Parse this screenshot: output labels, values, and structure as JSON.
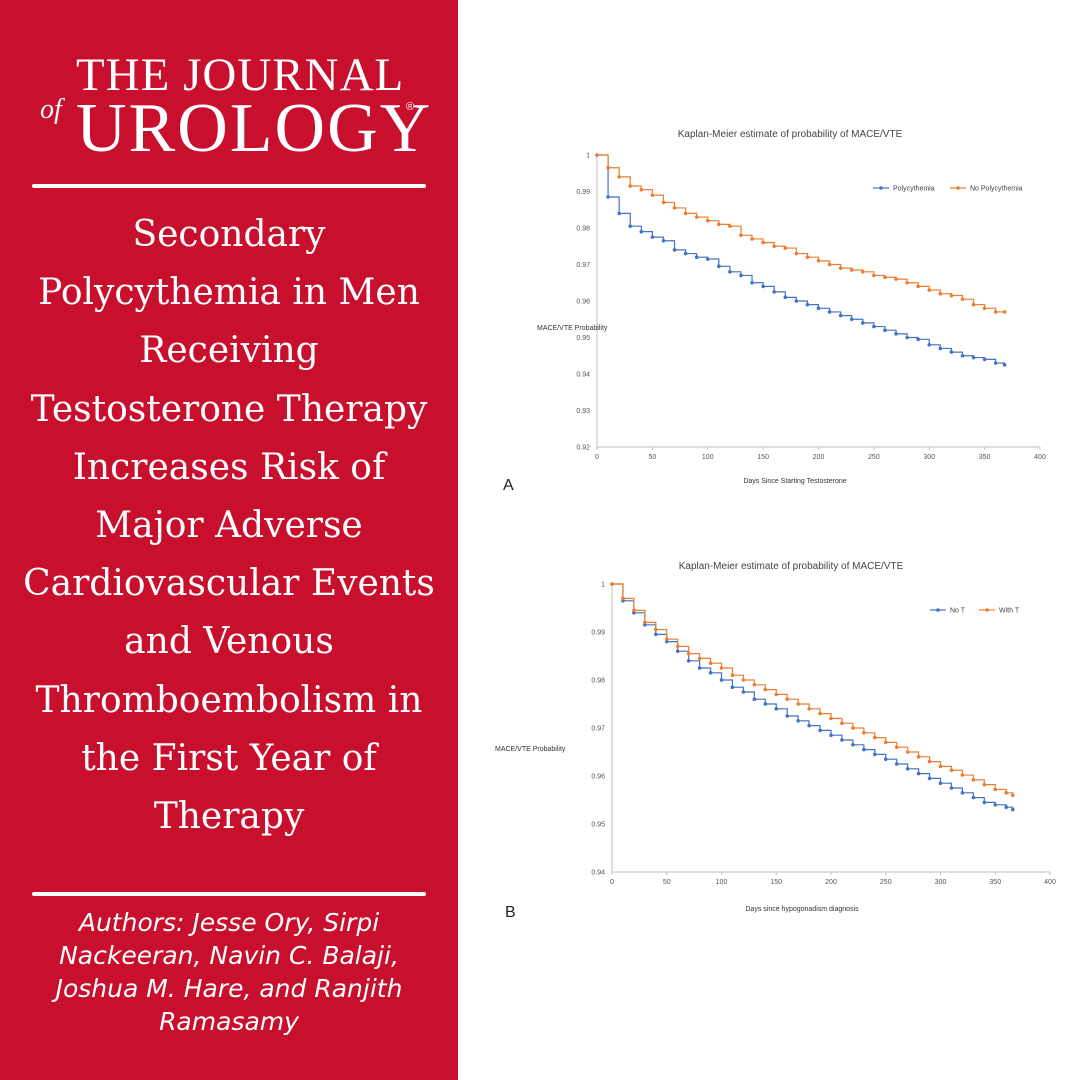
{
  "logo": {
    "line1": "THE JOURNAL",
    "of": "of",
    "line2": "UROLOGY",
    "reg": "®"
  },
  "title": "Secondary Polycythemia in Men Receiving Testosterone Therapy Increases Risk of Major Adverse Cardiovascular Events and Venous Thromboembolism in the First Year of Therapy",
  "authors": "Authors: Jesse Ory, Sirpi Nackeeran, Navin C. Balaji, Joshua M. Hare, and Ranjith Ramasamy",
  "colors": {
    "brand_red": "#c8102e",
    "series_blue": "#4472c4",
    "series_orange": "#ed7d31"
  },
  "chart_data": [
    {
      "type": "line",
      "panel_label": "A",
      "title": "Kaplan-Meier estimate of probability of MACE/VTE",
      "xlabel": "Days Since Starting Testosterone",
      "ylabel": "MACE/VTE Probability",
      "xlim": [
        0,
        400
      ],
      "ylim": [
        0.92,
        1.0
      ],
      "xticks": [
        0,
        50,
        100,
        150,
        200,
        250,
        300,
        350,
        400
      ],
      "yticks": [
        0.92,
        0.93,
        0.94,
        0.95,
        0.96,
        0.97,
        0.98,
        0.99,
        1
      ],
      "grid": false,
      "legend_position": "top-right",
      "series": [
        {
          "name": "Polycythemia",
          "color": "#4472c4",
          "x": [
            0,
            10,
            20,
            30,
            40,
            50,
            60,
            70,
            80,
            90,
            100,
            110,
            120,
            130,
            140,
            150,
            160,
            170,
            180,
            190,
            200,
            210,
            220,
            230,
            240,
            250,
            260,
            270,
            280,
            290,
            300,
            310,
            320,
            330,
            340,
            350,
            360,
            368
          ],
          "y": [
            1.0,
            0.9885,
            0.984,
            0.9805,
            0.979,
            0.9775,
            0.9765,
            0.974,
            0.973,
            0.972,
            0.9715,
            0.9695,
            0.968,
            0.967,
            0.965,
            0.964,
            0.9625,
            0.961,
            0.96,
            0.959,
            0.958,
            0.957,
            0.956,
            0.955,
            0.954,
            0.953,
            0.952,
            0.951,
            0.95,
            0.9495,
            0.948,
            0.947,
            0.946,
            0.945,
            0.9445,
            0.944,
            0.943,
            0.9425
          ]
        },
        {
          "name": "No Polycythemia",
          "color": "#ed7d31",
          "x": [
            0,
            10,
            20,
            30,
            40,
            50,
            60,
            70,
            80,
            90,
            100,
            110,
            120,
            130,
            140,
            150,
            160,
            170,
            180,
            190,
            200,
            210,
            220,
            230,
            240,
            250,
            260,
            270,
            280,
            290,
            300,
            310,
            320,
            330,
            340,
            350,
            360,
            368
          ],
          "y": [
            1.0,
            0.9965,
            0.994,
            0.9915,
            0.9905,
            0.989,
            0.987,
            0.9855,
            0.984,
            0.983,
            0.982,
            0.981,
            0.9805,
            0.978,
            0.977,
            0.976,
            0.975,
            0.9745,
            0.973,
            0.972,
            0.971,
            0.97,
            0.969,
            0.9685,
            0.968,
            0.967,
            0.9665,
            0.966,
            0.965,
            0.964,
            0.963,
            0.962,
            0.9615,
            0.9605,
            0.959,
            0.958,
            0.957,
            0.957
          ]
        }
      ]
    },
    {
      "type": "line",
      "panel_label": "B",
      "title": "Kaplan-Meier estimate of probability of MACE/VTE",
      "xlabel": "Days since hypogonadism diagnosis",
      "ylabel": "MACE/VTE Probability",
      "xlim": [
        0,
        400
      ],
      "ylim": [
        0.94,
        1.0
      ],
      "xticks": [
        0,
        50,
        100,
        150,
        200,
        250,
        300,
        350,
        400
      ],
      "yticks": [
        0.94,
        0.95,
        0.96,
        0.97,
        0.98,
        0.99,
        1
      ],
      "grid": false,
      "legend_position": "top-right",
      "series": [
        {
          "name": "No T",
          "color": "#4472c4",
          "x": [
            0,
            10,
            20,
            30,
            40,
            50,
            60,
            70,
            80,
            90,
            100,
            110,
            120,
            130,
            140,
            150,
            160,
            170,
            180,
            190,
            200,
            210,
            220,
            230,
            240,
            250,
            260,
            270,
            280,
            290,
            300,
            310,
            320,
            330,
            340,
            350,
            360,
            366
          ],
          "y": [
            1.0,
            0.9965,
            0.994,
            0.9915,
            0.9895,
            0.988,
            0.986,
            0.984,
            0.9825,
            0.9815,
            0.98,
            0.9785,
            0.9775,
            0.976,
            0.975,
            0.974,
            0.9725,
            0.9715,
            0.9705,
            0.9695,
            0.9685,
            0.9675,
            0.9665,
            0.9655,
            0.9645,
            0.9635,
            0.9625,
            0.9615,
            0.9605,
            0.9595,
            0.9585,
            0.9575,
            0.9565,
            0.9555,
            0.9545,
            0.954,
            0.9535,
            0.953
          ]
        },
        {
          "name": "With T",
          "color": "#ed7d31",
          "x": [
            0,
            10,
            20,
            30,
            40,
            50,
            60,
            70,
            80,
            90,
            100,
            110,
            120,
            130,
            140,
            150,
            160,
            170,
            180,
            190,
            200,
            210,
            220,
            230,
            240,
            250,
            260,
            270,
            280,
            290,
            300,
            310,
            320,
            330,
            340,
            350,
            360,
            366
          ],
          "y": [
            1.0,
            0.997,
            0.9945,
            0.992,
            0.9905,
            0.9885,
            0.987,
            0.9855,
            0.9845,
            0.9835,
            0.9825,
            0.981,
            0.98,
            0.979,
            0.978,
            0.977,
            0.976,
            0.975,
            0.974,
            0.973,
            0.972,
            0.971,
            0.97,
            0.969,
            0.968,
            0.967,
            0.966,
            0.965,
            0.964,
            0.963,
            0.962,
            0.9612,
            0.9602,
            0.9592,
            0.9582,
            0.9572,
            0.9565,
            0.956
          ]
        }
      ]
    }
  ]
}
